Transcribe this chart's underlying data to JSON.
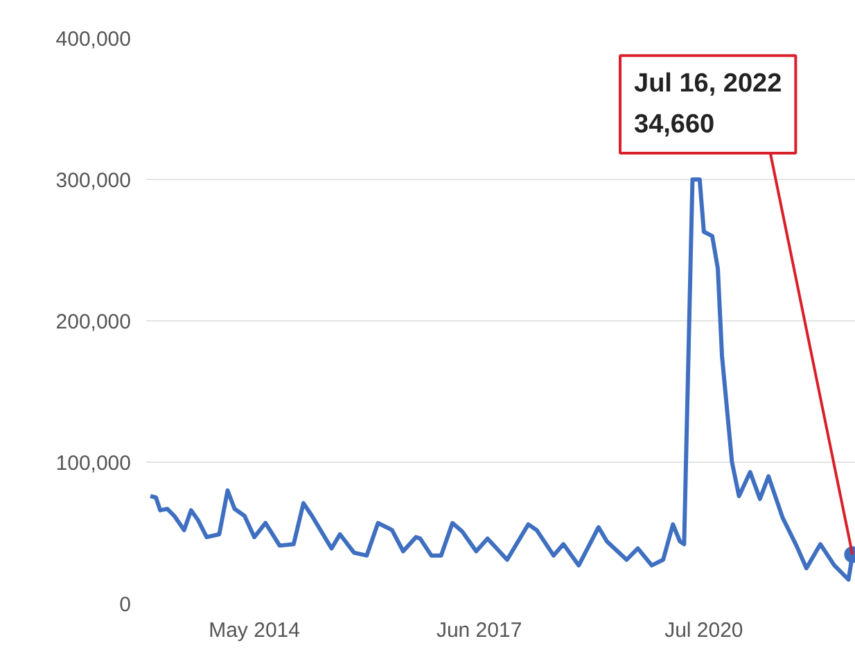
{
  "chart_data": {
    "type": "line",
    "x": [
      "2012-11-26",
      "2012-12-24",
      "2013-01-14",
      "2013-02-19",
      "2013-03-26",
      "2013-05-14",
      "2013-06-18",
      "2013-07-23",
      "2013-09-04",
      "2013-11-06",
      "2013-12-18",
      "2014-01-22",
      "2014-03-13",
      "2014-05-01",
      "2014-06-26",
      "2014-09-05",
      "2014-11-14",
      "2015-01-02",
      "2015-02-14",
      "2015-05-23",
      "2015-07-04",
      "2015-09-13",
      "2015-11-15",
      "2016-01-11",
      "2016-03-21",
      "2016-05-16",
      "2016-07-19",
      "2016-08-09",
      "2016-10-04",
      "2016-11-22",
      "2017-01-18",
      "2017-03-08",
      "2017-05-17",
      "2017-07-13",
      "2017-10-19",
      "2018-02-02",
      "2018-03-16",
      "2018-06-09",
      "2018-07-28",
      "2018-10-13",
      "2019-01-20",
      "2019-03-03",
      "2019-06-10",
      "2019-08-05",
      "2019-10-14",
      "2019-12-10",
      "2020-01-28",
      "2020-03-03",
      "2020-03-24",
      "2020-05-05",
      "2020-06-10",
      "2020-07-01",
      "2020-08-12",
      "2020-09-09",
      "2020-09-30",
      "2020-11-19",
      "2020-12-24",
      "2021-02-18",
      "2021-04-08",
      "2021-05-21",
      "2021-07-30",
      "2021-10-08",
      "2021-11-27",
      "2022-02-05",
      "2022-04-16",
      "2022-06-26",
      "2022-07-16"
    ],
    "series": [
      {
        "color": "#3f6fc0",
        "values": [
          76000,
          75000,
          66000,
          67000,
          62000,
          52000,
          66000,
          59000,
          47000,
          49000,
          80000,
          67000,
          62000,
          47000,
          57000,
          41000,
          42000,
          71000,
          62000,
          39000,
          49000,
          36000,
          34000,
          57000,
          52000,
          37000,
          47000,
          46000,
          34000,
          34000,
          57000,
          51000,
          37000,
          46000,
          31000,
          56000,
          52000,
          34000,
          42000,
          27000,
          54000,
          44000,
          31000,
          39000,
          27000,
          31000,
          56000,
          44000,
          42000,
          300000,
          300000,
          263000,
          260000,
          237000,
          175000,
          100000,
          76000,
          93000,
          74000,
          90000,
          61000,
          41000,
          25000,
          42000,
          27000,
          17000,
          34660
        ]
      }
    ],
    "xlim": [
      "2012-11-05",
      "2022-08-01"
    ],
    "xticks": [
      {
        "value": "2014-05-01",
        "label": "May 2014"
      },
      {
        "value": "2017-06-01",
        "label": "Jun 2017"
      },
      {
        "value": "2020-07-01",
        "label": "Jul 2020"
      }
    ],
    "ylim": [
      0,
      400000
    ],
    "yticks": [
      {
        "value": 0,
        "label": "0"
      },
      {
        "value": 100000,
        "label": "100,000"
      },
      {
        "value": 200000,
        "label": "200,000"
      },
      {
        "value": 300000,
        "label": "300,000"
      },
      {
        "value": 400000,
        "label": "400,000"
      }
    ],
    "grid": "y",
    "marker": "none",
    "line_style": "solid",
    "annotations": [
      {
        "text": "Jul 16, 2022\n34,660",
        "x": "2022-07-16",
        "y": 34660
      }
    ]
  }
}
